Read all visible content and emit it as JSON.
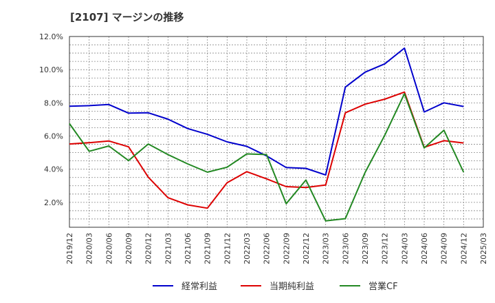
{
  "chart_data": {
    "type": "line",
    "title": "[2107]  マージンの推移",
    "xlabel": "",
    "ylabel": "",
    "ylim": [
      0.5,
      12.0
    ],
    "y_ticks": [
      2.0,
      4.0,
      6.0,
      8.0,
      10.0,
      12.0
    ],
    "y_tick_labels": [
      "2.0%",
      "4.0%",
      "6.0%",
      "8.0%",
      "10.0%",
      "12.0%"
    ],
    "x_tick_labels": [
      "2019/12",
      "2020/03",
      "2020/06",
      "2020/09",
      "2020/12",
      "2021/03",
      "2021/06",
      "2021/09",
      "2021/12",
      "2022/03",
      "2022/06",
      "2022/09",
      "2022/12",
      "2023/03",
      "2023/06",
      "2023/09",
      "2023/12",
      "2024/03",
      "2024/06",
      "2024/09",
      "2024/12",
      "2025/03"
    ],
    "grid": true,
    "legend_position": "bottom",
    "series": [
      {
        "name": "経常利益",
        "color": "#0000cc",
        "values": [
          7.8,
          7.83,
          7.9,
          7.38,
          7.4,
          7.02,
          6.45,
          6.1,
          5.65,
          5.38,
          4.8,
          4.1,
          4.05,
          3.65,
          8.95,
          9.85,
          10.35,
          11.3,
          7.45,
          8.0,
          7.78,
          null
        ]
      },
      {
        "name": "当期純利益",
        "color": "#dd0000",
        "values": [
          5.52,
          5.6,
          5.7,
          5.35,
          3.52,
          2.28,
          1.85,
          1.65,
          3.18,
          3.85,
          3.42,
          2.95,
          2.9,
          3.05,
          7.4,
          7.92,
          8.22,
          8.65,
          5.32,
          5.72,
          5.58,
          null
        ]
      },
      {
        "name": "営業CF",
        "color": "#228822",
        "values": [
          6.75,
          5.08,
          5.4,
          4.52,
          5.52,
          4.88,
          4.32,
          3.82,
          4.12,
          4.92,
          4.88,
          1.92,
          3.35,
          0.88,
          1.02,
          3.8,
          6.05,
          8.55,
          5.28,
          6.35,
          3.82,
          null
        ]
      }
    ]
  }
}
